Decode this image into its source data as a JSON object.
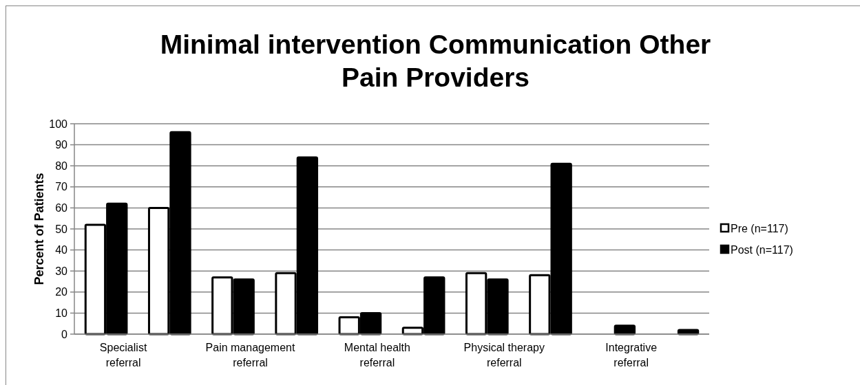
{
  "chart_data": {
    "type": "bar",
    "title": "Minimal intervention Communication Other Pain Providers",
    "ylabel": "Percent of Patients",
    "categories": [
      "Specialist referral",
      null,
      "Pain management referral",
      null,
      "Mental health referral",
      null,
      "Physical therapy referral",
      null,
      "Integrative referral",
      null
    ],
    "series": [
      {
        "name": "Pre (n=117)",
        "color": "#ffffff",
        "values": [
          52,
          60,
          27,
          29,
          8,
          3,
          29,
          28,
          0,
          0
        ]
      },
      {
        "name": "Post (n=117)",
        "color": "#000000",
        "values": [
          62,
          96,
          26,
          84,
          10,
          27,
          26,
          81,
          4,
          2
        ]
      }
    ],
    "ylim": [
      0,
      100
    ],
    "yticks": [
      0,
      10,
      20,
      30,
      40,
      50,
      60,
      70,
      80,
      90,
      100
    ],
    "grid": "y",
    "legend": "right"
  }
}
